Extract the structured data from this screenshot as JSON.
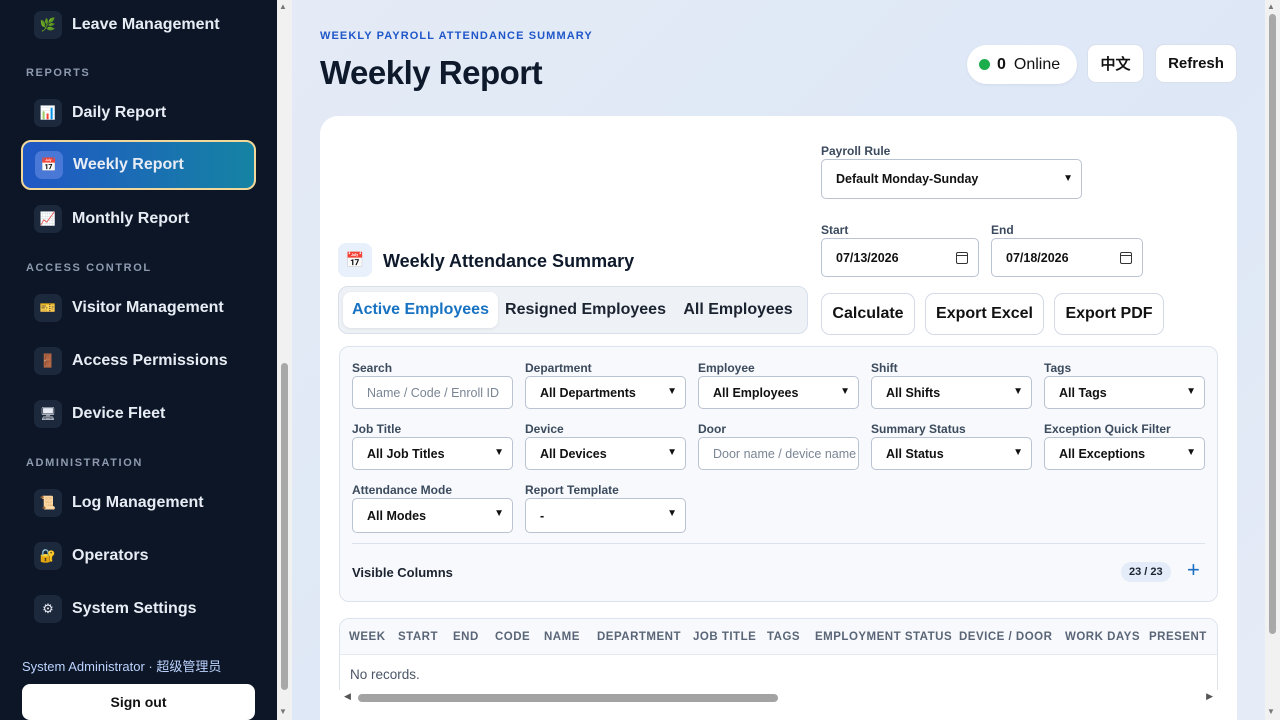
{
  "sidebar": {
    "items": [
      {
        "label": "Leave Management",
        "icon": "🌿"
      },
      {
        "label": "Daily Report",
        "icon": "📊"
      },
      {
        "label": "Weekly Report",
        "icon": "📅"
      },
      {
        "label": "Monthly Report",
        "icon": "📈"
      },
      {
        "label": "Visitor Management",
        "icon": "🎫"
      },
      {
        "label": "Access Permissions",
        "icon": "🚪"
      },
      {
        "label": "Device Fleet",
        "icon": "🖥"
      },
      {
        "label": "Log Management",
        "icon": "📜"
      },
      {
        "label": "Operators",
        "icon": "🔐"
      },
      {
        "label": "System Settings",
        "icon": "⚙"
      }
    ],
    "sections": {
      "reports": "REPORTS",
      "access_control": "ACCESS CONTROL",
      "administration": "ADMINISTRATION"
    },
    "user": "System Administrator · 超级管理员",
    "sign_out": "Sign out",
    "active_color": "#2057c5"
  },
  "header": {
    "eyebrow": "WEEKLY PAYROLL ATTENDANCE SUMMARY",
    "title": "Weekly Report",
    "online_count": "0",
    "online_label": "Online",
    "language_button": "中文",
    "refresh_button": "Refresh"
  },
  "controls": {
    "payroll_rule_label": "Payroll Rule",
    "payroll_rule_value": "Default Monday-Sunday",
    "start_label": "Start",
    "start_value": "07/13/2026",
    "end_label": "End",
    "end_value": "07/18/2026",
    "summary_title": "Weekly Attendance Summary",
    "tabs": [
      "Active Employees",
      "Resigned Employees",
      "All Employees"
    ],
    "active_tab": "Active Employees",
    "calculate": "Calculate",
    "export_excel": "Export Excel",
    "export_pdf": "Export PDF"
  },
  "filters": {
    "search_label": "Search",
    "search_placeholder": "Name / Code / Enroll ID",
    "department_label": "Department",
    "department_value": "All Departments",
    "employee_label": "Employee",
    "employee_value": "All Employees",
    "shift_label": "Shift",
    "shift_value": "All Shifts",
    "tags_label": "Tags",
    "tags_value": "All Tags",
    "job_title_label": "Job Title",
    "job_title_value": "All Job Titles",
    "device_label": "Device",
    "device_value": "All Devices",
    "door_label": "Door",
    "door_placeholder": "Door name / device name",
    "summary_status_label": "Summary Status",
    "summary_status_value": "All Status",
    "exception_label": "Exception Quick Filter",
    "exception_value": "All Exceptions",
    "attendance_mode_label": "Attendance Mode",
    "attendance_mode_value": "All Modes",
    "report_template_label": "Report Template",
    "report_template_value": "-",
    "visible_columns_label": "Visible Columns",
    "visible_columns_count": "23 / 23"
  },
  "table": {
    "columns": [
      "WEEK",
      "START",
      "END",
      "CODE",
      "NAME",
      "DEPARTMENT",
      "JOB TITLE",
      "TAGS",
      "EMPLOYMENT STATUS",
      "DEVICE / DOOR",
      "WORK DAYS",
      "PRESENT"
    ],
    "empty_message": "No records."
  }
}
